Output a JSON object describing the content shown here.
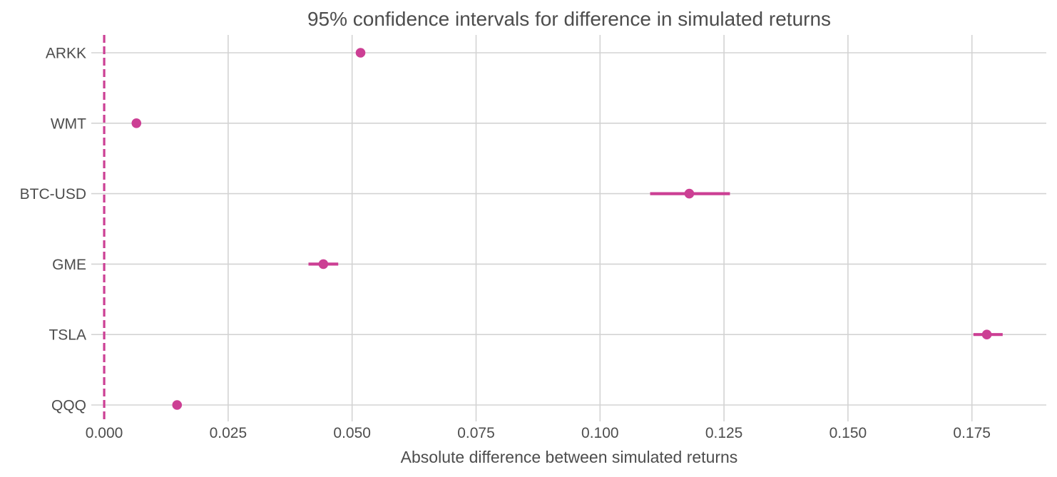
{
  "chart_data": {
    "type": "scatter",
    "title": "95% confidence intervals for difference in simulated returns",
    "xlabel": "Absolute difference between simulated returns",
    "ylabel": "",
    "xlim": [
      -0.0026,
      0.19
    ],
    "xticks": [
      0.0,
      0.025,
      0.05,
      0.075,
      0.1,
      0.125,
      0.15,
      0.175
    ],
    "xtick_labels": [
      "0.000",
      "0.025",
      "0.050",
      "0.075",
      "0.100",
      "0.125",
      "0.150",
      "0.175"
    ],
    "categories": [
      "ARKK",
      "WMT",
      "BTC-USD",
      "GME",
      "TSLA",
      "QQQ"
    ],
    "series": [
      {
        "points": [
          {
            "label": "ARKK",
            "value": 0.0517,
            "ci": [
              0.0512,
              0.0522
            ]
          },
          {
            "label": "WMT",
            "value": 0.0065,
            "ci": [
              0.0062,
              0.0068
            ]
          },
          {
            "label": "BTC-USD",
            "value": 0.118,
            "ci": [
              0.1101,
              0.1262
            ]
          },
          {
            "label": "GME",
            "value": 0.0442,
            "ci": [
              0.0412,
              0.0472
            ]
          },
          {
            "label": "TSLA",
            "value": 0.178,
            "ci": [
              0.1753,
              0.1812
            ]
          },
          {
            "label": "QQQ",
            "value": 0.0147,
            "ci": [
              0.0144,
              0.015
            ]
          }
        ]
      }
    ],
    "reference_line": {
      "x": 0.0,
      "style": "dashed"
    },
    "grid": true,
    "colors": {
      "marker": "#cc3f94",
      "grid": "#d3d3d3",
      "text": "#4d4d4d"
    }
  }
}
